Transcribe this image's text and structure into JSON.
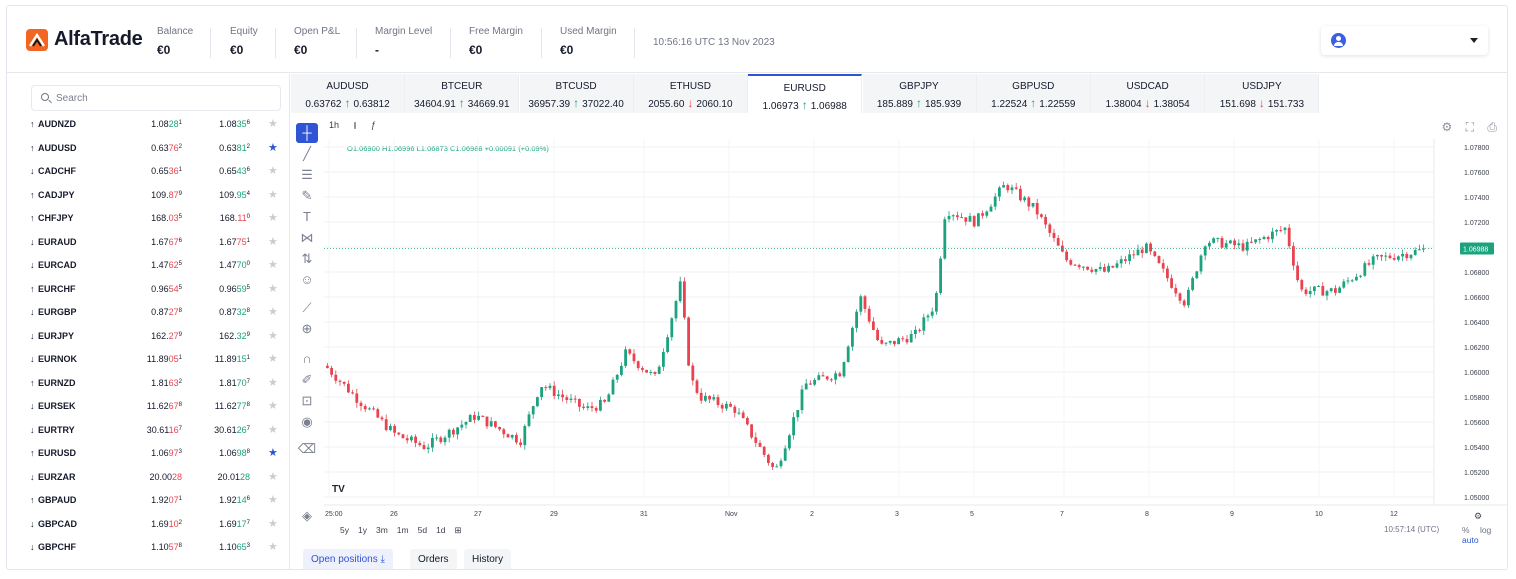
{
  "app": {
    "name": "AlfaTrade",
    "time": "10:56:16 UTC 13 Nov 2023"
  },
  "colors": {
    "accent": "#2f55d4",
    "logo": "#f26522",
    "up": "#1ca37e",
    "down": "#e8434f"
  },
  "header": {
    "stats": [
      {
        "label": "Balance",
        "value": "€0"
      },
      {
        "label": "Equity",
        "value": "€0"
      },
      {
        "label": "Open P&L",
        "value": "€0"
      },
      {
        "label": "Margin Level",
        "value": "-"
      },
      {
        "label": "Free Margin",
        "value": "€0"
      },
      {
        "label": "Used Margin",
        "value": "€0"
      }
    ]
  },
  "search": {
    "placeholder": "Search"
  },
  "watchlist": [
    {
      "dir": "up",
      "symbol": "AUDNZD",
      "bid": [
        "1.08",
        "28",
        "1",
        "up"
      ],
      "ask": [
        "1.08",
        "35",
        "6",
        "up"
      ],
      "fav": false
    },
    {
      "dir": "up",
      "symbol": "AUDUSD",
      "bid": [
        "0.63",
        "76",
        "2",
        "dn"
      ],
      "ask": [
        "0.63",
        "81",
        "2",
        "up"
      ],
      "fav": true
    },
    {
      "dir": "down",
      "symbol": "CADCHF",
      "bid": [
        "0.65",
        "36",
        "1",
        "dn"
      ],
      "ask": [
        "0.65",
        "43",
        "6",
        "up"
      ],
      "fav": false
    },
    {
      "dir": "up",
      "symbol": "CADJPY",
      "bid": [
        "109.",
        "87",
        "9",
        "dn"
      ],
      "ask": [
        "109.",
        "95",
        "4",
        "up"
      ],
      "fav": false
    },
    {
      "dir": "up",
      "symbol": "CHFJPY",
      "bid": [
        "168.",
        "03",
        "5",
        "dn"
      ],
      "ask": [
        "168.",
        "11",
        "0",
        "dn"
      ],
      "fav": false
    },
    {
      "dir": "down",
      "symbol": "EURAUD",
      "bid": [
        "1.67",
        "67",
        "6",
        "dn"
      ],
      "ask": [
        "1.67",
        "75",
        "1",
        "dn"
      ],
      "fav": false
    },
    {
      "dir": "down",
      "symbol": "EURCAD",
      "bid": [
        "1.47",
        "62",
        "5",
        "dn"
      ],
      "ask": [
        "1.47",
        "70",
        "0",
        "up"
      ],
      "fav": false
    },
    {
      "dir": "up",
      "symbol": "EURCHF",
      "bid": [
        "0.96",
        "54",
        "5",
        "dn"
      ],
      "ask": [
        "0.96",
        "59",
        "5",
        "up"
      ],
      "fav": false
    },
    {
      "dir": "down",
      "symbol": "EURGBP",
      "bid": [
        "0.87",
        "27",
        "8",
        "dn"
      ],
      "ask": [
        "0.87",
        "32",
        "8",
        "up"
      ],
      "fav": false
    },
    {
      "dir": "down",
      "symbol": "EURJPY",
      "bid": [
        "162.",
        "27",
        "9",
        "dn"
      ],
      "ask": [
        "162.",
        "32",
        "9",
        "up"
      ],
      "fav": false
    },
    {
      "dir": "down",
      "symbol": "EURNOK",
      "bid": [
        "11.89",
        "05",
        "1",
        "dn"
      ],
      "ask": [
        "11.89",
        "15",
        "1",
        "up"
      ],
      "fav": false
    },
    {
      "dir": "up",
      "symbol": "EURNZD",
      "bid": [
        "1.81",
        "63",
        "2",
        "dn"
      ],
      "ask": [
        "1.81",
        "70",
        "7",
        "up"
      ],
      "fav": false
    },
    {
      "dir": "down",
      "symbol": "EURSEK",
      "bid": [
        "11.62",
        "67",
        "8",
        "dn"
      ],
      "ask": [
        "11.62",
        "77",
        "8",
        "up"
      ],
      "fav": false
    },
    {
      "dir": "down",
      "symbol": "EURTRY",
      "bid": [
        "30.61",
        "16",
        "7",
        "dn"
      ],
      "ask": [
        "30.61",
        "26",
        "7",
        "up"
      ],
      "fav": false
    },
    {
      "dir": "up",
      "symbol": "EURUSD",
      "bid": [
        "1.06",
        "97",
        "3",
        "dn"
      ],
      "ask": [
        "1.06",
        "98",
        "8",
        "up"
      ],
      "fav": true
    },
    {
      "dir": "down",
      "symbol": "EURZAR",
      "bid": [
        "20.00",
        "28",
        "",
        "dn"
      ],
      "ask": [
        "20.01",
        "28",
        "",
        "up"
      ],
      "fav": false
    },
    {
      "dir": "up",
      "symbol": "GBPAUD",
      "bid": [
        "1.92",
        "07",
        "1",
        "dn"
      ],
      "ask": [
        "1.92",
        "14",
        "6",
        "up"
      ],
      "fav": false
    },
    {
      "dir": "down",
      "symbol": "GBPCAD",
      "bid": [
        "1.69",
        "10",
        "2",
        "dn"
      ],
      "ask": [
        "1.69",
        "17",
        "7",
        "up"
      ],
      "fav": false
    },
    {
      "dir": "down",
      "symbol": "GBPCHF",
      "bid": [
        "1.10",
        "57",
        "8",
        "dn"
      ],
      "ask": [
        "1.10",
        "65",
        "3",
        "up"
      ],
      "fav": false
    }
  ],
  "ticker": [
    {
      "symbol": "AUDUSD",
      "bid": "0.63762",
      "ask": "0.63812",
      "dir": "up"
    },
    {
      "symbol": "BTCEUR",
      "bid": "34604.91",
      "ask": "34669.91",
      "dir": "up"
    },
    {
      "symbol": "BTCUSD",
      "bid": "36957.39",
      "ask": "37022.40",
      "dir": "up"
    },
    {
      "symbol": "ETHUSD",
      "bid": "2055.60",
      "ask": "2060.10",
      "dir": "down"
    },
    {
      "symbol": "EURUSD",
      "bid": "1.06973",
      "ask": "1.06988",
      "dir": "up",
      "active": true
    },
    {
      "symbol": "GBPJPY",
      "bid": "185.889",
      "ask": "185.939",
      "dir": "up"
    },
    {
      "symbol": "GBPUSD",
      "bid": "1.22524",
      "ask": "1.22559",
      "dir": "up"
    },
    {
      "symbol": "USDCAD",
      "bid": "1.38004",
      "ask": "1.38054",
      "dir": "down"
    },
    {
      "symbol": "USDJPY",
      "bid": "151.698",
      "ask": "151.733",
      "dir": "down"
    }
  ],
  "chart": {
    "timeframe": "1h",
    "ohlc_text": "O1.06900  H1.06996  L1.06873  C1.06988  +0.00091 (+0.09%)",
    "price_ticks": [
      "1.07800",
      "1.07600",
      "1.07400",
      "1.07200",
      "1.07000",
      "1.06800",
      "1.06600",
      "1.06400",
      "1.06200",
      "1.06000",
      "1.05800",
      "1.05600",
      "1.05400",
      "1.05200",
      "1.05000"
    ],
    "last_price": "1.06988",
    "date_ticks": [
      "25:00",
      "26",
      "27",
      "29",
      "31",
      "Nov",
      "2",
      "3",
      "5",
      "7",
      "8",
      "9",
      "10",
      "12"
    ],
    "ranges": [
      "5y",
      "1y",
      "3m",
      "1m",
      "5d",
      "1d"
    ],
    "clock": "10:57:14 (UTC)",
    "options": [
      "%",
      "log",
      "auto"
    ]
  },
  "bottom_tabs": [
    "Open positions",
    "Orders",
    "History"
  ]
}
